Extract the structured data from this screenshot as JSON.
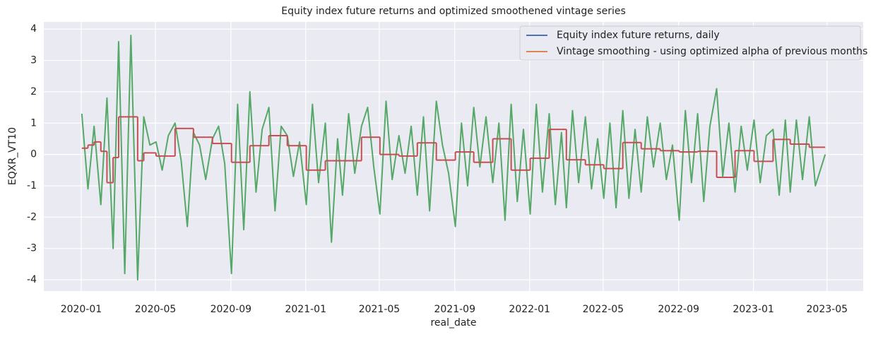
{
  "chart_data": {
    "type": "line",
    "title": "Equity index future returns and optimized smoothened vintage series",
    "xlabel": "real_date",
    "ylabel": "EQXR_VT10",
    "x": [
      "2020-01-02",
      "2020-01-12",
      "2020-01-22",
      "2020-02-02",
      "2020-02-12",
      "2020-02-22",
      "2020-03-02",
      "2020-03-12",
      "2020-03-22",
      "2020-04-02",
      "2020-04-12",
      "2020-04-22",
      "2020-05-02",
      "2020-05-12",
      "2020-05-22",
      "2020-06-02",
      "2020-06-12",
      "2020-06-22",
      "2020-07-02",
      "2020-07-12",
      "2020-07-22",
      "2020-08-02",
      "2020-08-12",
      "2020-08-22",
      "2020-09-02",
      "2020-09-12",
      "2020-09-22",
      "2020-10-02",
      "2020-10-12",
      "2020-10-22",
      "2020-11-02",
      "2020-11-12",
      "2020-11-22",
      "2020-12-02",
      "2020-12-12",
      "2020-12-22",
      "2021-01-02",
      "2021-01-12",
      "2021-01-22",
      "2021-02-02",
      "2021-02-12",
      "2021-02-22",
      "2021-03-02",
      "2021-03-12",
      "2021-03-22",
      "2021-04-02",
      "2021-04-12",
      "2021-04-22",
      "2021-05-02",
      "2021-05-12",
      "2021-05-22",
      "2021-06-02",
      "2021-06-12",
      "2021-06-22",
      "2021-07-02",
      "2021-07-12",
      "2021-07-22",
      "2021-08-02",
      "2021-08-12",
      "2021-08-22",
      "2021-09-02",
      "2021-09-12",
      "2021-09-22",
      "2021-10-02",
      "2021-10-12",
      "2021-10-22",
      "2021-11-02",
      "2021-11-12",
      "2021-11-22",
      "2021-12-02",
      "2021-12-12",
      "2021-12-22",
      "2022-01-02",
      "2022-01-12",
      "2022-01-22",
      "2022-02-02",
      "2022-02-12",
      "2022-02-22",
      "2022-03-02",
      "2022-03-12",
      "2022-03-22",
      "2022-04-02",
      "2022-04-12",
      "2022-04-22",
      "2022-05-02",
      "2022-05-12",
      "2022-05-22",
      "2022-06-02",
      "2022-06-12",
      "2022-06-22",
      "2022-07-02",
      "2022-07-12",
      "2022-07-22",
      "2022-08-02",
      "2022-08-12",
      "2022-08-22",
      "2022-09-02",
      "2022-09-12",
      "2022-09-22",
      "2022-10-02",
      "2022-10-12",
      "2022-10-22",
      "2022-11-02",
      "2022-11-12",
      "2022-11-22",
      "2022-12-02",
      "2022-12-12",
      "2022-12-22",
      "2023-01-02",
      "2023-01-12",
      "2023-01-22",
      "2023-02-02",
      "2023-02-12",
      "2023-02-22",
      "2023-03-02",
      "2023-03-12",
      "2023-03-22",
      "2023-04-02",
      "2023-04-12",
      "2023-04-28"
    ],
    "series": [
      {
        "name": "Equity index future returns, daily",
        "legend_color": "#4c72b0",
        "color": "#55a868",
        "step": false,
        "values": [
          1.3,
          -1.1,
          0.9,
          -1.6,
          1.8,
          -3.0,
          3.6,
          -3.8,
          3.8,
          -4.0,
          1.2,
          0.3,
          0.4,
          -0.5,
          0.6,
          1.0,
          -0.2,
          -2.3,
          0.7,
          0.3,
          -0.8,
          0.5,
          0.9,
          -0.3,
          -3.8,
          1.6,
          -2.4,
          2.0,
          -1.2,
          0.8,
          1.5,
          -1.8,
          0.9,
          0.6,
          -0.7,
          0.4,
          -1.6,
          1.6,
          -0.9,
          1.0,
          -2.8,
          0.5,
          -1.3,
          1.3,
          -0.6,
          0.9,
          1.5,
          -0.4,
          -1.9,
          1.7,
          -0.8,
          0.6,
          -0.6,
          0.9,
          -1.3,
          1.2,
          -1.8,
          1.7,
          0.3,
          -0.6,
          -2.3,
          1.0,
          -1.0,
          1.5,
          -0.4,
          1.2,
          -0.9,
          1.0,
          -2.1,
          1.6,
          -1.5,
          0.8,
          -1.9,
          1.6,
          -1.2,
          1.3,
          -1.6,
          0.7,
          -1.7,
          1.4,
          -0.9,
          1.2,
          -1.1,
          0.5,
          -1.4,
          1.0,
          -1.7,
          1.4,
          -1.4,
          0.8,
          -1.2,
          1.2,
          -0.4,
          1.0,
          -0.8,
          0.3,
          -2.1,
          1.4,
          -0.9,
          1.3,
          -1.5,
          0.9,
          2.1,
          -0.7,
          1.0,
          -1.2,
          0.9,
          -0.5,
          1.1,
          -0.9,
          0.6,
          0.8,
          -1.3,
          1.1,
          -1.2,
          1.1,
          -0.8,
          1.2,
          -1.0,
          0.0
        ]
      },
      {
        "name": "Vintage smoothing - using optimized alpha of previous months",
        "legend_color": "#dd8452",
        "color": "#c44e52",
        "step": true,
        "values": [
          0.2,
          0.3,
          0.4,
          0.1,
          -0.9,
          -0.1,
          1.2,
          1.2,
          1.2,
          -0.2,
          0.05,
          0.05,
          -0.05,
          -0.05,
          -0.05,
          0.83,
          0.83,
          0.83,
          0.55,
          0.55,
          0.55,
          0.35,
          0.35,
          0.35,
          -0.25,
          -0.25,
          -0.25,
          0.28,
          0.28,
          0.28,
          0.6,
          0.6,
          0.6,
          0.28,
          0.28,
          0.28,
          -0.5,
          -0.5,
          -0.5,
          -0.2,
          -0.2,
          -0.2,
          -0.2,
          -0.2,
          -0.2,
          0.55,
          0.55,
          0.55,
          0.0,
          0.0,
          0.0,
          -0.05,
          -0.05,
          -0.05,
          0.37,
          0.37,
          0.37,
          -0.18,
          -0.18,
          -0.18,
          0.08,
          0.08,
          0.08,
          -0.25,
          -0.25,
          -0.25,
          0.5,
          0.5,
          0.5,
          -0.5,
          -0.5,
          -0.5,
          -0.12,
          -0.12,
          -0.12,
          0.8,
          0.8,
          0.8,
          -0.17,
          -0.17,
          -0.17,
          -0.33,
          -0.33,
          -0.33,
          -0.45,
          -0.45,
          -0.45,
          0.38,
          0.38,
          0.38,
          0.18,
          0.18,
          0.18,
          0.12,
          0.12,
          0.12,
          0.08,
          0.08,
          0.08,
          0.1,
          0.1,
          0.1,
          -0.73,
          -0.73,
          -0.73,
          0.12,
          0.12,
          0.12,
          -0.22,
          -0.22,
          -0.22,
          0.48,
          0.48,
          0.48,
          0.33,
          0.33,
          0.33,
          0.23,
          0.23,
          0.23
        ]
      }
    ],
    "xlim": [
      "2019-11-01",
      "2023-06-29"
    ],
    "xticks": [
      "2020-01",
      "2020-05",
      "2020-09",
      "2021-01",
      "2021-05",
      "2021-09",
      "2022-01",
      "2022-05",
      "2022-09",
      "2023-01",
      "2023-05"
    ],
    "ylim": [
      -4.36,
      4.23
    ],
    "yticks": [
      -4,
      -3,
      -2,
      -1,
      0,
      1,
      2,
      3,
      4
    ],
    "grid": true,
    "legend": "upper right"
  }
}
